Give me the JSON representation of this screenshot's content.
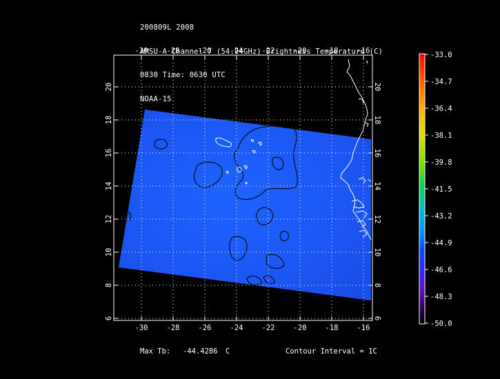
{
  "header": {
    "line1": "200809L 2008",
    "line2": "AMSU-A Channel 7 (54.94GHz) Brightness Temperature (C)",
    "line3": "0830 Time: 0630 UTC",
    "line4": "NOAA-15"
  },
  "map": {
    "lon_ticks": [
      -30,
      -28,
      -26,
      -24,
      -22,
      -20,
      -18,
      -16
    ],
    "lat_ticks": [
      6,
      8,
      10,
      12,
      14,
      16,
      18,
      20
    ],
    "lon_range": [
      -31.8,
      -15.4
    ],
    "lat_range": [
      5.9,
      21.8
    ],
    "grid": true,
    "swath_color": "#1f5cff",
    "coastline_color": "#ffffff",
    "contour_color": "#000000"
  },
  "colorbar": {
    "labels": [
      "-33.0",
      "-34.7",
      "-36.4",
      "-38.1",
      "-39.8",
      "-41.5",
      "-43.2",
      "-44.9",
      "-46.6",
      "-48.3",
      "-50.0"
    ],
    "colors": [
      "#ff0000",
      "#ff6a00",
      "#ffb000",
      "#d8e000",
      "#7ee000",
      "#00d070",
      "#00b8e0",
      "#0050ff",
      "#4a20ff",
      "#5a0090",
      "#000000"
    ]
  },
  "footer": {
    "max_tb_label": "Max Tb:",
    "max_tb_value": "-44.4286",
    "max_tb_unit": "C",
    "contour_interval": "Contour Interval = 1C"
  }
}
